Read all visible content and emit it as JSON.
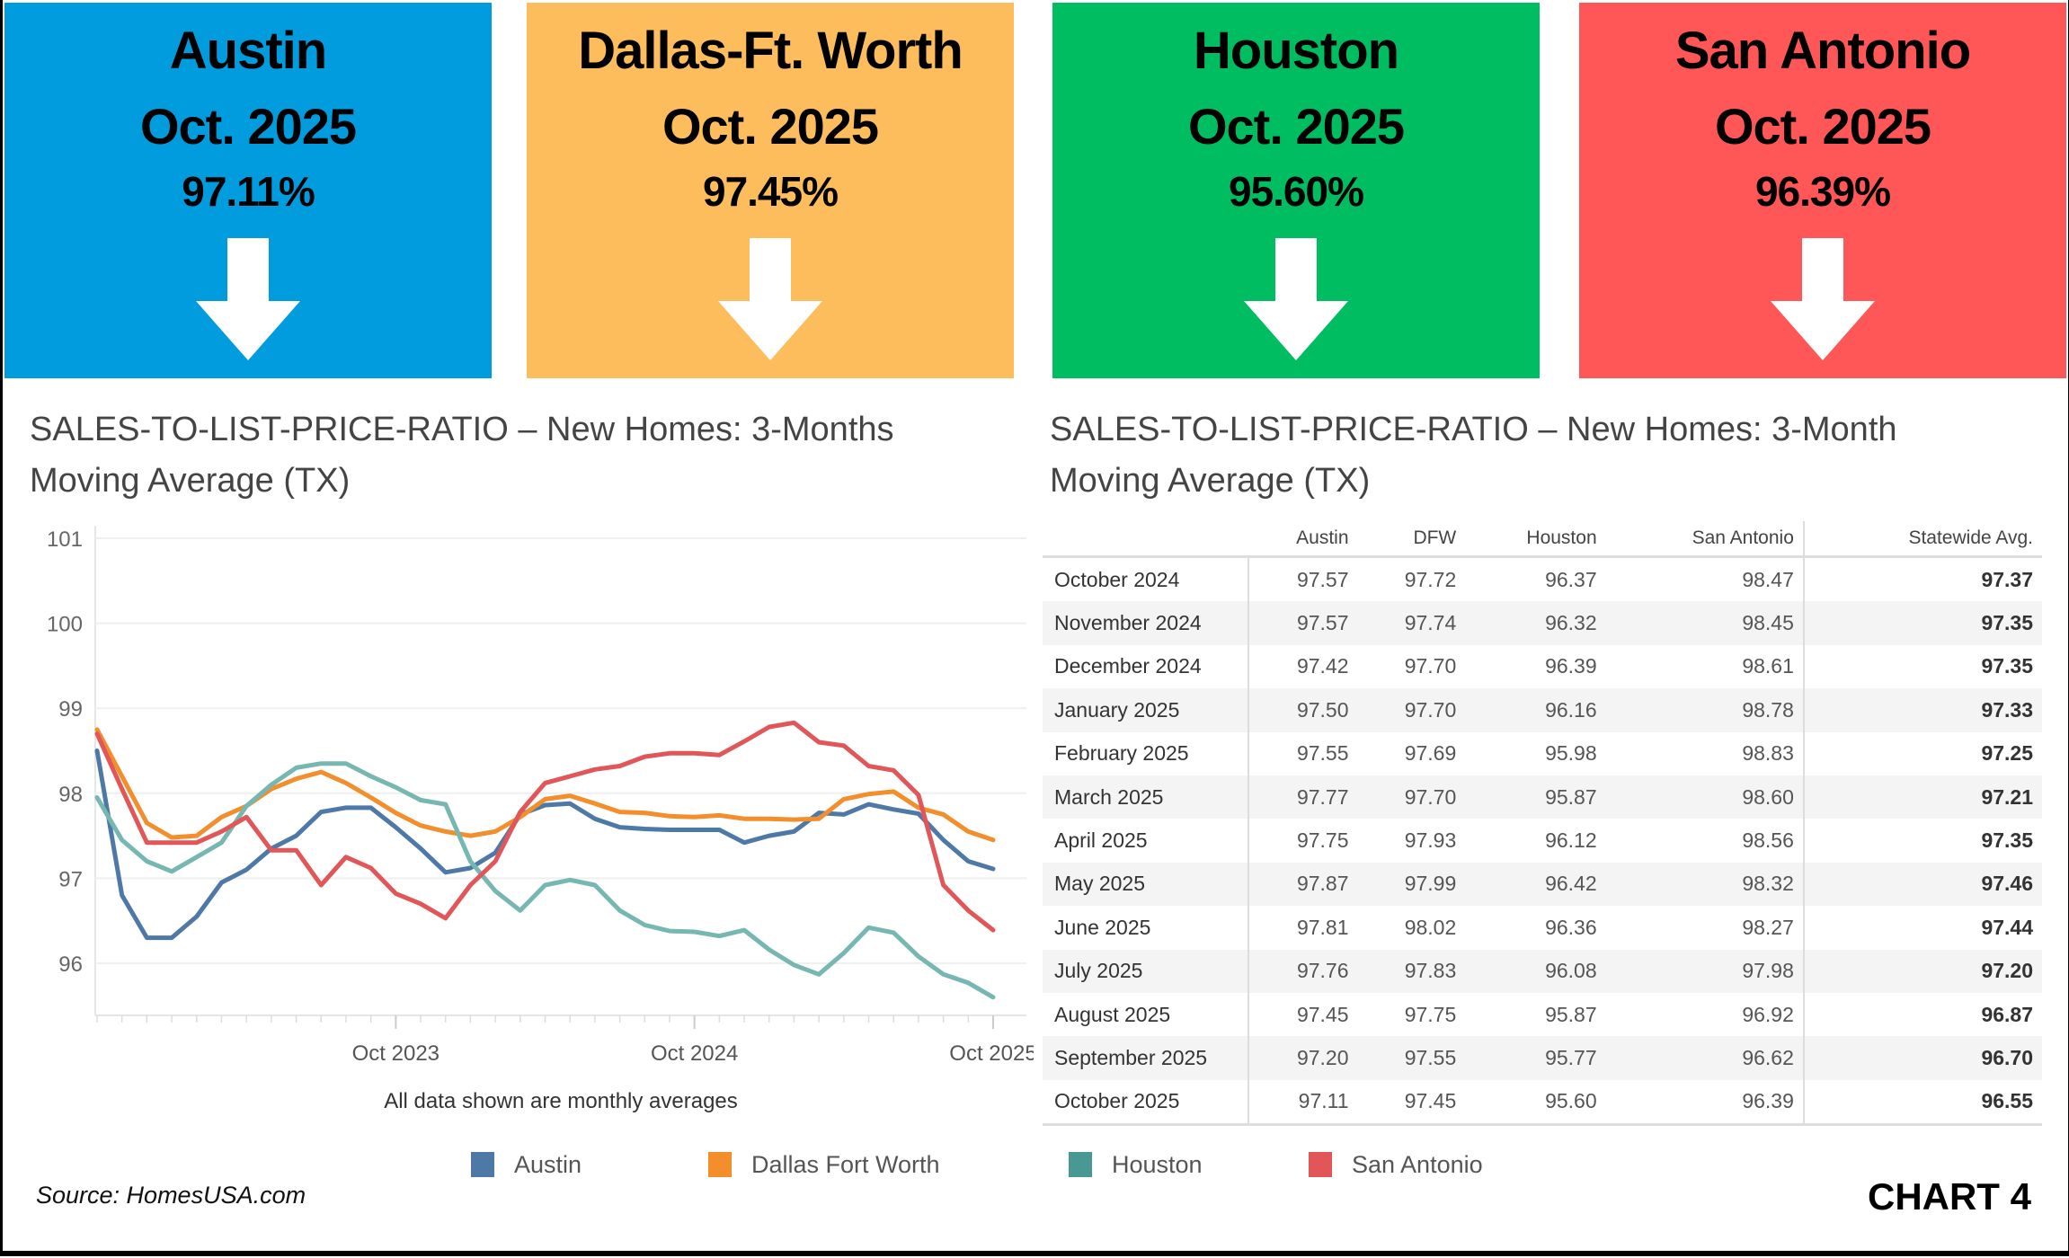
{
  "tiles": [
    {
      "city": "Austin",
      "date": "Oct. 2025",
      "value": "97.11%",
      "color": "#009cde",
      "icon": "arrow-down-icon"
    },
    {
      "city": "Dallas-Ft. Worth",
      "date": "Oct. 2025",
      "value": "97.45%",
      "color": "#fdbd5c",
      "icon": "arrow-down-icon"
    },
    {
      "city": "Houston",
      "date": "Oct. 2025",
      "value": "95.60%",
      "color": "#00bd62",
      "icon": "arrow-down-icon"
    },
    {
      "city": "San Antonio",
      "date": "Oct. 2025",
      "value": "96.39%",
      "color": "#ff5757",
      "icon": "arrow-down-icon"
    }
  ],
  "left_title_1": "SALES-TO-LIST-PRICE-RATIO – New Homes: 3-Months",
  "left_title_2": "Moving Average (TX)",
  "right_title_1": "SALES-TO-LIST-PRICE-RATIO – New Homes:  3-Month",
  "right_title_2": "Moving Average (TX)",
  "chart_data": {
    "type": "line",
    "x_start": "Oct 2022",
    "x_ticks": [
      "Oct 2023",
      "Oct 2024",
      "Oct 2025"
    ],
    "y_ticks": [
      96,
      97,
      98,
      99,
      100,
      101
    ],
    "ylim": [
      95.3,
      101.5
    ],
    "grid": true,
    "legend": "bottom",
    "note": "All data shown are monthly averages",
    "series": [
      {
        "name": "Austin",
        "color": "#4e79a7",
        "values": [
          98.5,
          96.8,
          96.3,
          96.3,
          96.55,
          96.95,
          97.1,
          97.35,
          97.5,
          97.78,
          97.83,
          97.83,
          97.6,
          97.35,
          97.07,
          97.12,
          97.3,
          97.75,
          97.86,
          97.88,
          97.7,
          97.6,
          97.58,
          97.57,
          97.57,
          97.57,
          97.42,
          97.5,
          97.55,
          97.77,
          97.75,
          97.87,
          97.81,
          97.76,
          97.45,
          97.2,
          97.11
        ]
      },
      {
        "name": "Dallas Fort Worth",
        "color": "#f28e2b",
        "values": [
          98.75,
          98.2,
          97.65,
          97.48,
          97.5,
          97.72,
          97.85,
          98.05,
          98.17,
          98.25,
          98.12,
          97.95,
          97.77,
          97.62,
          97.55,
          97.5,
          97.55,
          97.72,
          97.93,
          97.97,
          97.88,
          97.78,
          97.77,
          97.73,
          97.72,
          97.74,
          97.7,
          97.7,
          97.69,
          97.7,
          97.93,
          97.99,
          98.02,
          97.83,
          97.75,
          97.55,
          97.45
        ]
      },
      {
        "name": "Houston",
        "color": "#76b7b2",
        "values": [
          97.95,
          97.45,
          97.2,
          97.08,
          97.25,
          97.42,
          97.85,
          98.1,
          98.3,
          98.35,
          98.35,
          98.2,
          98.07,
          97.92,
          97.87,
          97.2,
          96.85,
          96.62,
          96.92,
          96.98,
          96.92,
          96.62,
          96.45,
          96.38,
          96.37,
          96.32,
          96.39,
          96.16,
          95.98,
          95.87,
          96.12,
          96.42,
          96.36,
          96.08,
          95.87,
          95.77,
          95.6
        ]
      },
      {
        "name": "San Antonio",
        "color": "#e15759",
        "values": [
          98.7,
          98.05,
          97.42,
          97.42,
          97.42,
          97.55,
          97.72,
          97.33,
          97.33,
          96.92,
          97.25,
          97.12,
          96.82,
          96.7,
          96.53,
          96.92,
          97.2,
          97.78,
          98.12,
          98.2,
          98.28,
          98.32,
          98.43,
          98.47,
          98.47,
          98.45,
          98.61,
          98.78,
          98.83,
          98.6,
          98.56,
          98.32,
          98.27,
          97.98,
          96.92,
          96.62,
          96.39
        ]
      }
    ]
  },
  "legend": [
    {
      "label": "Austin",
      "color": "#4e79a7"
    },
    {
      "label": "Dallas Fort Worth",
      "color": "#f28e2b"
    },
    {
      "label": "Houston",
      "color": "#499894"
    },
    {
      "label": "San Antonio",
      "color": "#e15759"
    }
  ],
  "table": {
    "headers": [
      "",
      "Austin",
      "DFW",
      "Houston",
      "San Antonio",
      "Statewide Avg."
    ],
    "rows": [
      [
        "October 2024",
        "97.57",
        "97.72",
        "96.37",
        "98.47",
        "97.37"
      ],
      [
        "November 2024",
        "97.57",
        "97.74",
        "96.32",
        "98.45",
        "97.35"
      ],
      [
        "December 2024",
        "97.42",
        "97.70",
        "96.39",
        "98.61",
        "97.35"
      ],
      [
        "January 2025",
        "97.50",
        "97.70",
        "96.16",
        "98.78",
        "97.33"
      ],
      [
        "February 2025",
        "97.55",
        "97.69",
        "95.98",
        "98.83",
        "97.25"
      ],
      [
        "March 2025",
        "97.77",
        "97.70",
        "95.87",
        "98.60",
        "97.21"
      ],
      [
        "April 2025",
        "97.75",
        "97.93",
        "96.12",
        "98.56",
        "97.35"
      ],
      [
        "May 2025",
        "97.87",
        "97.99",
        "96.42",
        "98.32",
        "97.46"
      ],
      [
        "June 2025",
        "97.81",
        "98.02",
        "96.36",
        "98.27",
        "97.44"
      ],
      [
        "July 2025",
        "97.76",
        "97.83",
        "96.08",
        "97.98",
        "97.20"
      ],
      [
        "August 2025",
        "97.45",
        "97.75",
        "95.87",
        "96.92",
        "96.87"
      ],
      [
        "September 2025",
        "97.20",
        "97.55",
        "95.77",
        "96.62",
        "96.70"
      ],
      [
        "October 2025",
        "97.11",
        "97.45",
        "95.60",
        "96.39",
        "96.55"
      ]
    ]
  },
  "source": "Source: HomesUSA.com",
  "chart_label": "CHART 4"
}
